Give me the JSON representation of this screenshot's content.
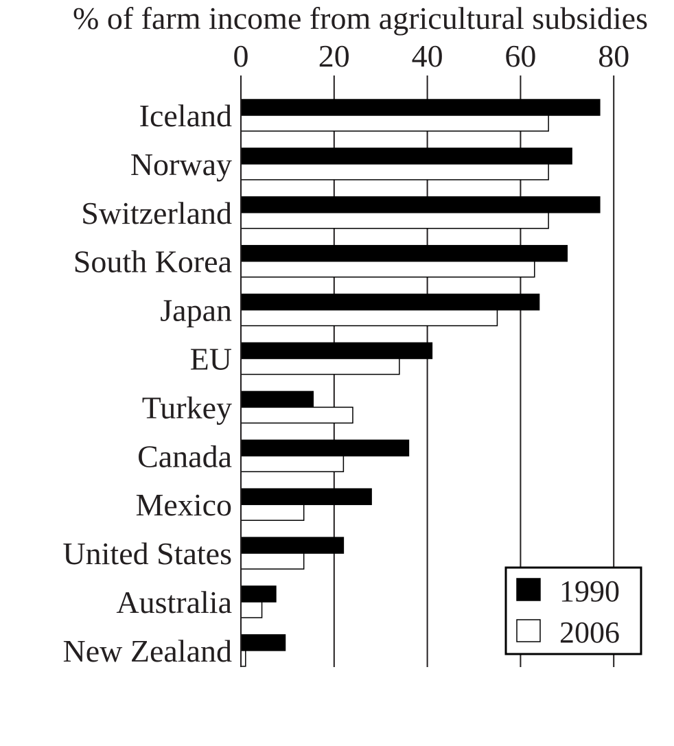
{
  "chart_data": {
    "type": "bar",
    "orientation": "horizontal",
    "title": "% of farm income from agricultural subsidies",
    "xlabel": "",
    "ylabel": "",
    "xlim": [
      0,
      80
    ],
    "xticks": [
      "0",
      "20",
      "40",
      "60",
      "80"
    ],
    "grid": true,
    "legend_position": "bottom-right",
    "categories": [
      "Iceland",
      "Norway",
      "Switzerland",
      "South Korea",
      "Japan",
      "EU",
      "Turkey",
      "Canada",
      "Mexico",
      "United States",
      "Australia",
      "New Zealand"
    ],
    "series": [
      {
        "name": "1990",
        "color": "#000000",
        "values": [
          77,
          71,
          77,
          70,
          64,
          41,
          15.5,
          36,
          28,
          22,
          7.5,
          9.5
        ]
      },
      {
        "name": "2006",
        "color": "#ffffff",
        "values": [
          66,
          66,
          66,
          63,
          55,
          34,
          24,
          22,
          13.5,
          13.5,
          4.5,
          1
        ]
      }
    ]
  }
}
